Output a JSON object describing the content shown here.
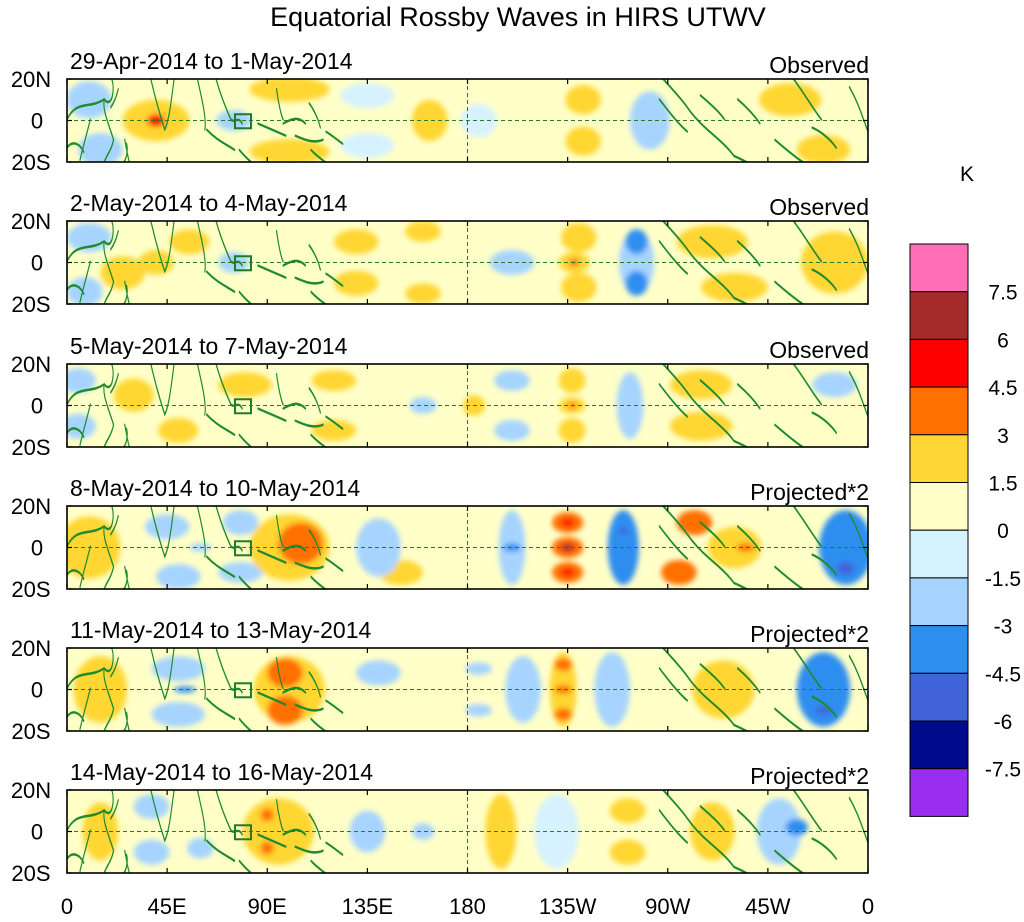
{
  "chart_data": {
    "type": "heatmap",
    "title": "Equatorial Rossby Waves in HIRS UTWV",
    "units": "K",
    "x_tick_labels": [
      "0",
      "45E",
      "90E",
      "135E",
      "180",
      "135W",
      "90W",
      "45W",
      "0"
    ],
    "y_tick_labels": [
      "20N",
      "0",
      "20S"
    ],
    "xlim": [
      0,
      360
    ],
    "ylim": [
      -20,
      20
    ],
    "colorbar": {
      "levels": [
        "7.5",
        "6",
        "4.5",
        "3",
        "1.5",
        "0",
        "-1.5",
        "-3",
        "-4.5",
        "-6",
        "-7.5"
      ],
      "colors": [
        "#ff6fb8",
        "#a52a2a",
        "#ff0000",
        "#ff7000",
        "#ffd633",
        "#ffffc8",
        "#d6f2ff",
        "#a6d4ff",
        "#2e8ef0",
        "#4163d9",
        "#000a8c",
        "#9a2ef0"
      ]
    },
    "panels": [
      {
        "date_range": "29-Apr-2014 to 1-May-2014",
        "label": "Observed",
        "blobs": [
          {
            "lon": 10,
            "lat": 10,
            "val": -2.5,
            "rx": 10,
            "ry": 9
          },
          {
            "lon": 15,
            "lat": -14,
            "val": -2.5,
            "rx": 10,
            "ry": 8
          },
          {
            "lon": 40,
            "lat": 0,
            "val": 2.5,
            "rx": 15,
            "ry": 10
          },
          {
            "lon": 40,
            "lat": 0,
            "val": 5.0,
            "rx": 4,
            "ry": 3
          },
          {
            "lon": 75,
            "lat": 0,
            "val": -2.0,
            "rx": 8,
            "ry": 5
          },
          {
            "lon": 100,
            "lat": 15,
            "val": 1.5,
            "rx": 18,
            "ry": 6
          },
          {
            "lon": 100,
            "lat": -15,
            "val": 1.5,
            "rx": 18,
            "ry": 6
          },
          {
            "lon": 135,
            "lat": 12,
            "val": -1.5,
            "rx": 12,
            "ry": 6
          },
          {
            "lon": 135,
            "lat": -12,
            "val": -1.5,
            "rx": 12,
            "ry": 6
          },
          {
            "lon": 163,
            "lat": 0,
            "val": 1.8,
            "rx": 8,
            "ry": 10
          },
          {
            "lon": 185,
            "lat": 0,
            "val": -1.5,
            "rx": 8,
            "ry": 8
          },
          {
            "lon": 232,
            "lat": 10,
            "val": 1.6,
            "rx": 8,
            "ry": 7
          },
          {
            "lon": 232,
            "lat": -10,
            "val": 1.6,
            "rx": 8,
            "ry": 7
          },
          {
            "lon": 262,
            "lat": 0,
            "val": -2.0,
            "rx": 9,
            "ry": 14
          },
          {
            "lon": 325,
            "lat": 10,
            "val": 2.0,
            "rx": 14,
            "ry": 8
          },
          {
            "lon": 340,
            "lat": -14,
            "val": 2.0,
            "rx": 12,
            "ry": 7
          }
        ]
      },
      {
        "date_range": "2-May-2014 to 4-May-2014",
        "label": "Observed",
        "blobs": [
          {
            "lon": 10,
            "lat": 12,
            "val": -2.0,
            "rx": 10,
            "ry": 7
          },
          {
            "lon": 8,
            "lat": -14,
            "val": -2.5,
            "rx": 8,
            "ry": 7
          },
          {
            "lon": 25,
            "lat": -5,
            "val": 1.5,
            "rx": 10,
            "ry": 8
          },
          {
            "lon": 40,
            "lat": 0,
            "val": 1.8,
            "rx": 8,
            "ry": 6
          },
          {
            "lon": 55,
            "lat": 10,
            "val": 1.6,
            "rx": 9,
            "ry": 6
          },
          {
            "lon": 75,
            "lat": 0,
            "val": -1.8,
            "rx": 7,
            "ry": 5
          },
          {
            "lon": 130,
            "lat": 10,
            "val": 1.6,
            "rx": 10,
            "ry": 6
          },
          {
            "lon": 130,
            "lat": -10,
            "val": 1.6,
            "rx": 10,
            "ry": 6
          },
          {
            "lon": 160,
            "lat": 15,
            "val": 1.6,
            "rx": 8,
            "ry": 5
          },
          {
            "lon": 160,
            "lat": -15,
            "val": 1.6,
            "rx": 8,
            "ry": 5
          },
          {
            "lon": 200,
            "lat": 0,
            "val": -1.6,
            "rx": 10,
            "ry": 6
          },
          {
            "lon": 230,
            "lat": 12,
            "val": 2.0,
            "rx": 8,
            "ry": 7
          },
          {
            "lon": 230,
            "lat": -12,
            "val": 2.0,
            "rx": 8,
            "ry": 7
          },
          {
            "lon": 228,
            "lat": 0,
            "val": 2.5,
            "rx": 7,
            "ry": 5
          },
          {
            "lon": 228,
            "lat": 0,
            "val": 5.0,
            "rx": 2,
            "ry": 1.5
          },
          {
            "lon": 256,
            "lat": 10,
            "val": -3.5,
            "rx": 5,
            "ry": 6
          },
          {
            "lon": 256,
            "lat": -10,
            "val": -3.5,
            "rx": 5,
            "ry": 6
          },
          {
            "lon": 256,
            "lat": 0,
            "val": -1.8,
            "rx": 8,
            "ry": 15
          },
          {
            "lon": 290,
            "lat": 10,
            "val": 1.8,
            "rx": 16,
            "ry": 8
          },
          {
            "lon": 300,
            "lat": -12,
            "val": 1.8,
            "rx": 15,
            "ry": 7
          },
          {
            "lon": 345,
            "lat": 0,
            "val": 1.6,
            "rx": 15,
            "ry": 15
          }
        ]
      },
      {
        "date_range": "5-May-2014 to 7-May-2014",
        "label": "Observed",
        "blobs": [
          {
            "lon": 5,
            "lat": 12,
            "val": -1.8,
            "rx": 8,
            "ry": 6
          },
          {
            "lon": 5,
            "lat": -10,
            "val": -2.0,
            "rx": 8,
            "ry": 6
          },
          {
            "lon": 30,
            "lat": 5,
            "val": 1.6,
            "rx": 9,
            "ry": 8
          },
          {
            "lon": 50,
            "lat": -12,
            "val": 1.6,
            "rx": 9,
            "ry": 6
          },
          {
            "lon": 80,
            "lat": 10,
            "val": 1.6,
            "rx": 12,
            "ry": 6
          },
          {
            "lon": 120,
            "lat": 12,
            "val": 1.6,
            "rx": 10,
            "ry": 5
          },
          {
            "lon": 120,
            "lat": -12,
            "val": 1.6,
            "rx": 10,
            "ry": 5
          },
          {
            "lon": 160,
            "lat": 0,
            "val": -1.6,
            "rx": 6,
            "ry": 4
          },
          {
            "lon": 183,
            "lat": 0,
            "val": 1.6,
            "rx": 5,
            "ry": 5
          },
          {
            "lon": 200,
            "lat": 12,
            "val": -1.8,
            "rx": 8,
            "ry": 5
          },
          {
            "lon": 200,
            "lat": -12,
            "val": -1.8,
            "rx": 8,
            "ry": 5
          },
          {
            "lon": 227,
            "lat": 12,
            "val": 2.2,
            "rx": 6,
            "ry": 6
          },
          {
            "lon": 227,
            "lat": -12,
            "val": 2.2,
            "rx": 6,
            "ry": 6
          },
          {
            "lon": 227,
            "lat": 0,
            "val": 2.0,
            "rx": 6,
            "ry": 4
          },
          {
            "lon": 227,
            "lat": 0,
            "val": 4.0,
            "rx": 2,
            "ry": 1.5
          },
          {
            "lon": 253,
            "lat": 0,
            "val": -2.5,
            "rx": 6,
            "ry": 16
          },
          {
            "lon": 285,
            "lat": 10,
            "val": 1.6,
            "rx": 14,
            "ry": 7
          },
          {
            "lon": 285,
            "lat": -10,
            "val": 1.6,
            "rx": 14,
            "ry": 7
          },
          {
            "lon": 345,
            "lat": 10,
            "val": -1.8,
            "rx": 10,
            "ry": 6
          }
        ]
      },
      {
        "date_range": "8-May-2014 to 10-May-2014",
        "label": "Projected*2",
        "blobs": [
          {
            "lon": 10,
            "lat": 0,
            "val": 1.6,
            "rx": 14,
            "ry": 15
          },
          {
            "lon": 45,
            "lat": 10,
            "val": -2.0,
            "rx": 10,
            "ry": 6
          },
          {
            "lon": 50,
            "lat": -14,
            "val": -2.5,
            "rx": 10,
            "ry": 6
          },
          {
            "lon": 60,
            "lat": 0,
            "val": -3.0,
            "rx": 5,
            "ry": 2
          },
          {
            "lon": 78,
            "lat": 12,
            "val": -3.0,
            "rx": 8,
            "ry": 6
          },
          {
            "lon": 78,
            "lat": -12,
            "val": -1.8,
            "rx": 10,
            "ry": 5
          },
          {
            "lon": 100,
            "lat": 0,
            "val": 2.5,
            "rx": 18,
            "ry": 16
          },
          {
            "lon": 105,
            "lat": 2,
            "val": 3.8,
            "rx": 10,
            "ry": 10
          },
          {
            "lon": 140,
            "lat": 0,
            "val": -1.8,
            "rx": 10,
            "ry": 14
          },
          {
            "lon": 150,
            "lat": -12,
            "val": 1.6,
            "rx": 10,
            "ry": 6
          },
          {
            "lon": 200,
            "lat": 0,
            "val": -2.5,
            "rx": 6,
            "ry": 18
          },
          {
            "lon": 200,
            "lat": 0,
            "val": -3.8,
            "rx": 4,
            "ry": 2
          },
          {
            "lon": 225,
            "lat": 12,
            "val": 3.6,
            "rx": 7,
            "ry": 5
          },
          {
            "lon": 225,
            "lat": -12,
            "val": 3.6,
            "rx": 7,
            "ry": 5
          },
          {
            "lon": 225,
            "lat": 0,
            "val": 3.8,
            "rx": 7,
            "ry": 5
          },
          {
            "lon": 225,
            "lat": 0,
            "val": 6.5,
            "rx": 3,
            "ry": 2
          },
          {
            "lon": 225,
            "lat": 12,
            "val": 5.0,
            "rx": 3,
            "ry": 2
          },
          {
            "lon": 225,
            "lat": -12,
            "val": 5.0,
            "rx": 3,
            "ry": 2
          },
          {
            "lon": 250,
            "lat": 0,
            "val": -3.8,
            "rx": 7,
            "ry": 18
          },
          {
            "lon": 250,
            "lat": 8,
            "val": -5.0,
            "rx": 2,
            "ry": 1.5
          },
          {
            "lon": 282,
            "lat": 12,
            "val": 3.2,
            "rx": 8,
            "ry": 6
          },
          {
            "lon": 275,
            "lat": -12,
            "val": 3.5,
            "rx": 8,
            "ry": 6
          },
          {
            "lon": 300,
            "lat": 0,
            "val": 2.5,
            "rx": 12,
            "ry": 10
          },
          {
            "lon": 305,
            "lat": 0,
            "val": 3.5,
            "rx": 4,
            "ry": 2
          },
          {
            "lon": 350,
            "lat": 0,
            "val": -4.2,
            "rx": 12,
            "ry": 18
          },
          {
            "lon": 350,
            "lat": -10,
            "val": -5.5,
            "rx": 4,
            "ry": 3
          }
        ]
      },
      {
        "date_range": "11-May-2014 to 13-May-2014",
        "label": "Projected*2",
        "blobs": [
          {
            "lon": 15,
            "lat": 0,
            "val": 1.6,
            "rx": 12,
            "ry": 16
          },
          {
            "lon": 50,
            "lat": 10,
            "val": -2.0,
            "rx": 12,
            "ry": 6
          },
          {
            "lon": 50,
            "lat": -12,
            "val": -2.0,
            "rx": 12,
            "ry": 6
          },
          {
            "lon": 53,
            "lat": 0,
            "val": -3.5,
            "rx": 5,
            "ry": 1.5
          },
          {
            "lon": 100,
            "lat": 0,
            "val": 2.5,
            "rx": 16,
            "ry": 16
          },
          {
            "lon": 98,
            "lat": 8,
            "val": 3.5,
            "rx": 8,
            "ry": 7
          },
          {
            "lon": 98,
            "lat": -10,
            "val": 3.5,
            "rx": 8,
            "ry": 7
          },
          {
            "lon": 140,
            "lat": 8,
            "val": -1.6,
            "rx": 10,
            "ry": 6
          },
          {
            "lon": 185,
            "lat": 10,
            "val": -2.5,
            "rx": 6,
            "ry": 3
          },
          {
            "lon": 185,
            "lat": -10,
            "val": -2.5,
            "rx": 6,
            "ry": 3
          },
          {
            "lon": 205,
            "lat": 0,
            "val": -1.8,
            "rx": 8,
            "ry": 16
          },
          {
            "lon": 223,
            "lat": 0,
            "val": 2.4,
            "rx": 6,
            "ry": 18
          },
          {
            "lon": 223,
            "lat": 12,
            "val": 3.5,
            "rx": 4,
            "ry": 3
          },
          {
            "lon": 223,
            "lat": 0,
            "val": 3.5,
            "rx": 4,
            "ry": 2
          },
          {
            "lon": 223,
            "lat": -12,
            "val": 3.5,
            "rx": 4,
            "ry": 3
          },
          {
            "lon": 245,
            "lat": 0,
            "val": -1.8,
            "rx": 8,
            "ry": 18
          },
          {
            "lon": 295,
            "lat": 0,
            "val": 2.0,
            "rx": 14,
            "ry": 14
          },
          {
            "lon": 340,
            "lat": 0,
            "val": -3.2,
            "rx": 12,
            "ry": 18
          },
          {
            "lon": 340,
            "lat": 0,
            "val": -4.0,
            "rx": 5,
            "ry": 3
          },
          {
            "lon": 340,
            "lat": -10,
            "val": -4.8,
            "rx": 4,
            "ry": 2
          }
        ]
      },
      {
        "date_range": "14-May-2014 to 16-May-2014",
        "label": "Projected*2",
        "blobs": [
          {
            "lon": 15,
            "lat": 0,
            "val": 1.6,
            "rx": 8,
            "ry": 14
          },
          {
            "lon": 38,
            "lat": 12,
            "val": -1.8,
            "rx": 8,
            "ry": 6
          },
          {
            "lon": 38,
            "lat": -10,
            "val": -1.8,
            "rx": 8,
            "ry": 6
          },
          {
            "lon": 60,
            "lat": -8,
            "val": -1.8,
            "rx": 6,
            "ry": 5
          },
          {
            "lon": 95,
            "lat": 0,
            "val": 2.4,
            "rx": 16,
            "ry": 16
          },
          {
            "lon": 90,
            "lat": 8,
            "val": 3.5,
            "rx": 3,
            "ry": 3
          },
          {
            "lon": 90,
            "lat": -8,
            "val": 3.5,
            "rx": 3,
            "ry": 3
          },
          {
            "lon": 135,
            "lat": 0,
            "val": -1.6,
            "rx": 8,
            "ry": 10
          },
          {
            "lon": 160,
            "lat": 0,
            "val": -1.6,
            "rx": 5,
            "ry": 4
          },
          {
            "lon": 195,
            "lat": 0,
            "val": 2.0,
            "rx": 7,
            "ry": 18
          },
          {
            "lon": 220,
            "lat": 0,
            "val": -0.8,
            "rx": 10,
            "ry": 18
          },
          {
            "lon": 252,
            "lat": 10,
            "val": 1.6,
            "rx": 8,
            "ry": 6
          },
          {
            "lon": 252,
            "lat": -10,
            "val": 1.6,
            "rx": 8,
            "ry": 6
          },
          {
            "lon": 290,
            "lat": 0,
            "val": 1.6,
            "rx": 10,
            "ry": 14
          },
          {
            "lon": 320,
            "lat": 0,
            "val": -1.8,
            "rx": 10,
            "ry": 16
          },
          {
            "lon": 328,
            "lat": 2,
            "val": -3.5,
            "rx": 5,
            "ry": 4
          }
        ]
      }
    ]
  }
}
